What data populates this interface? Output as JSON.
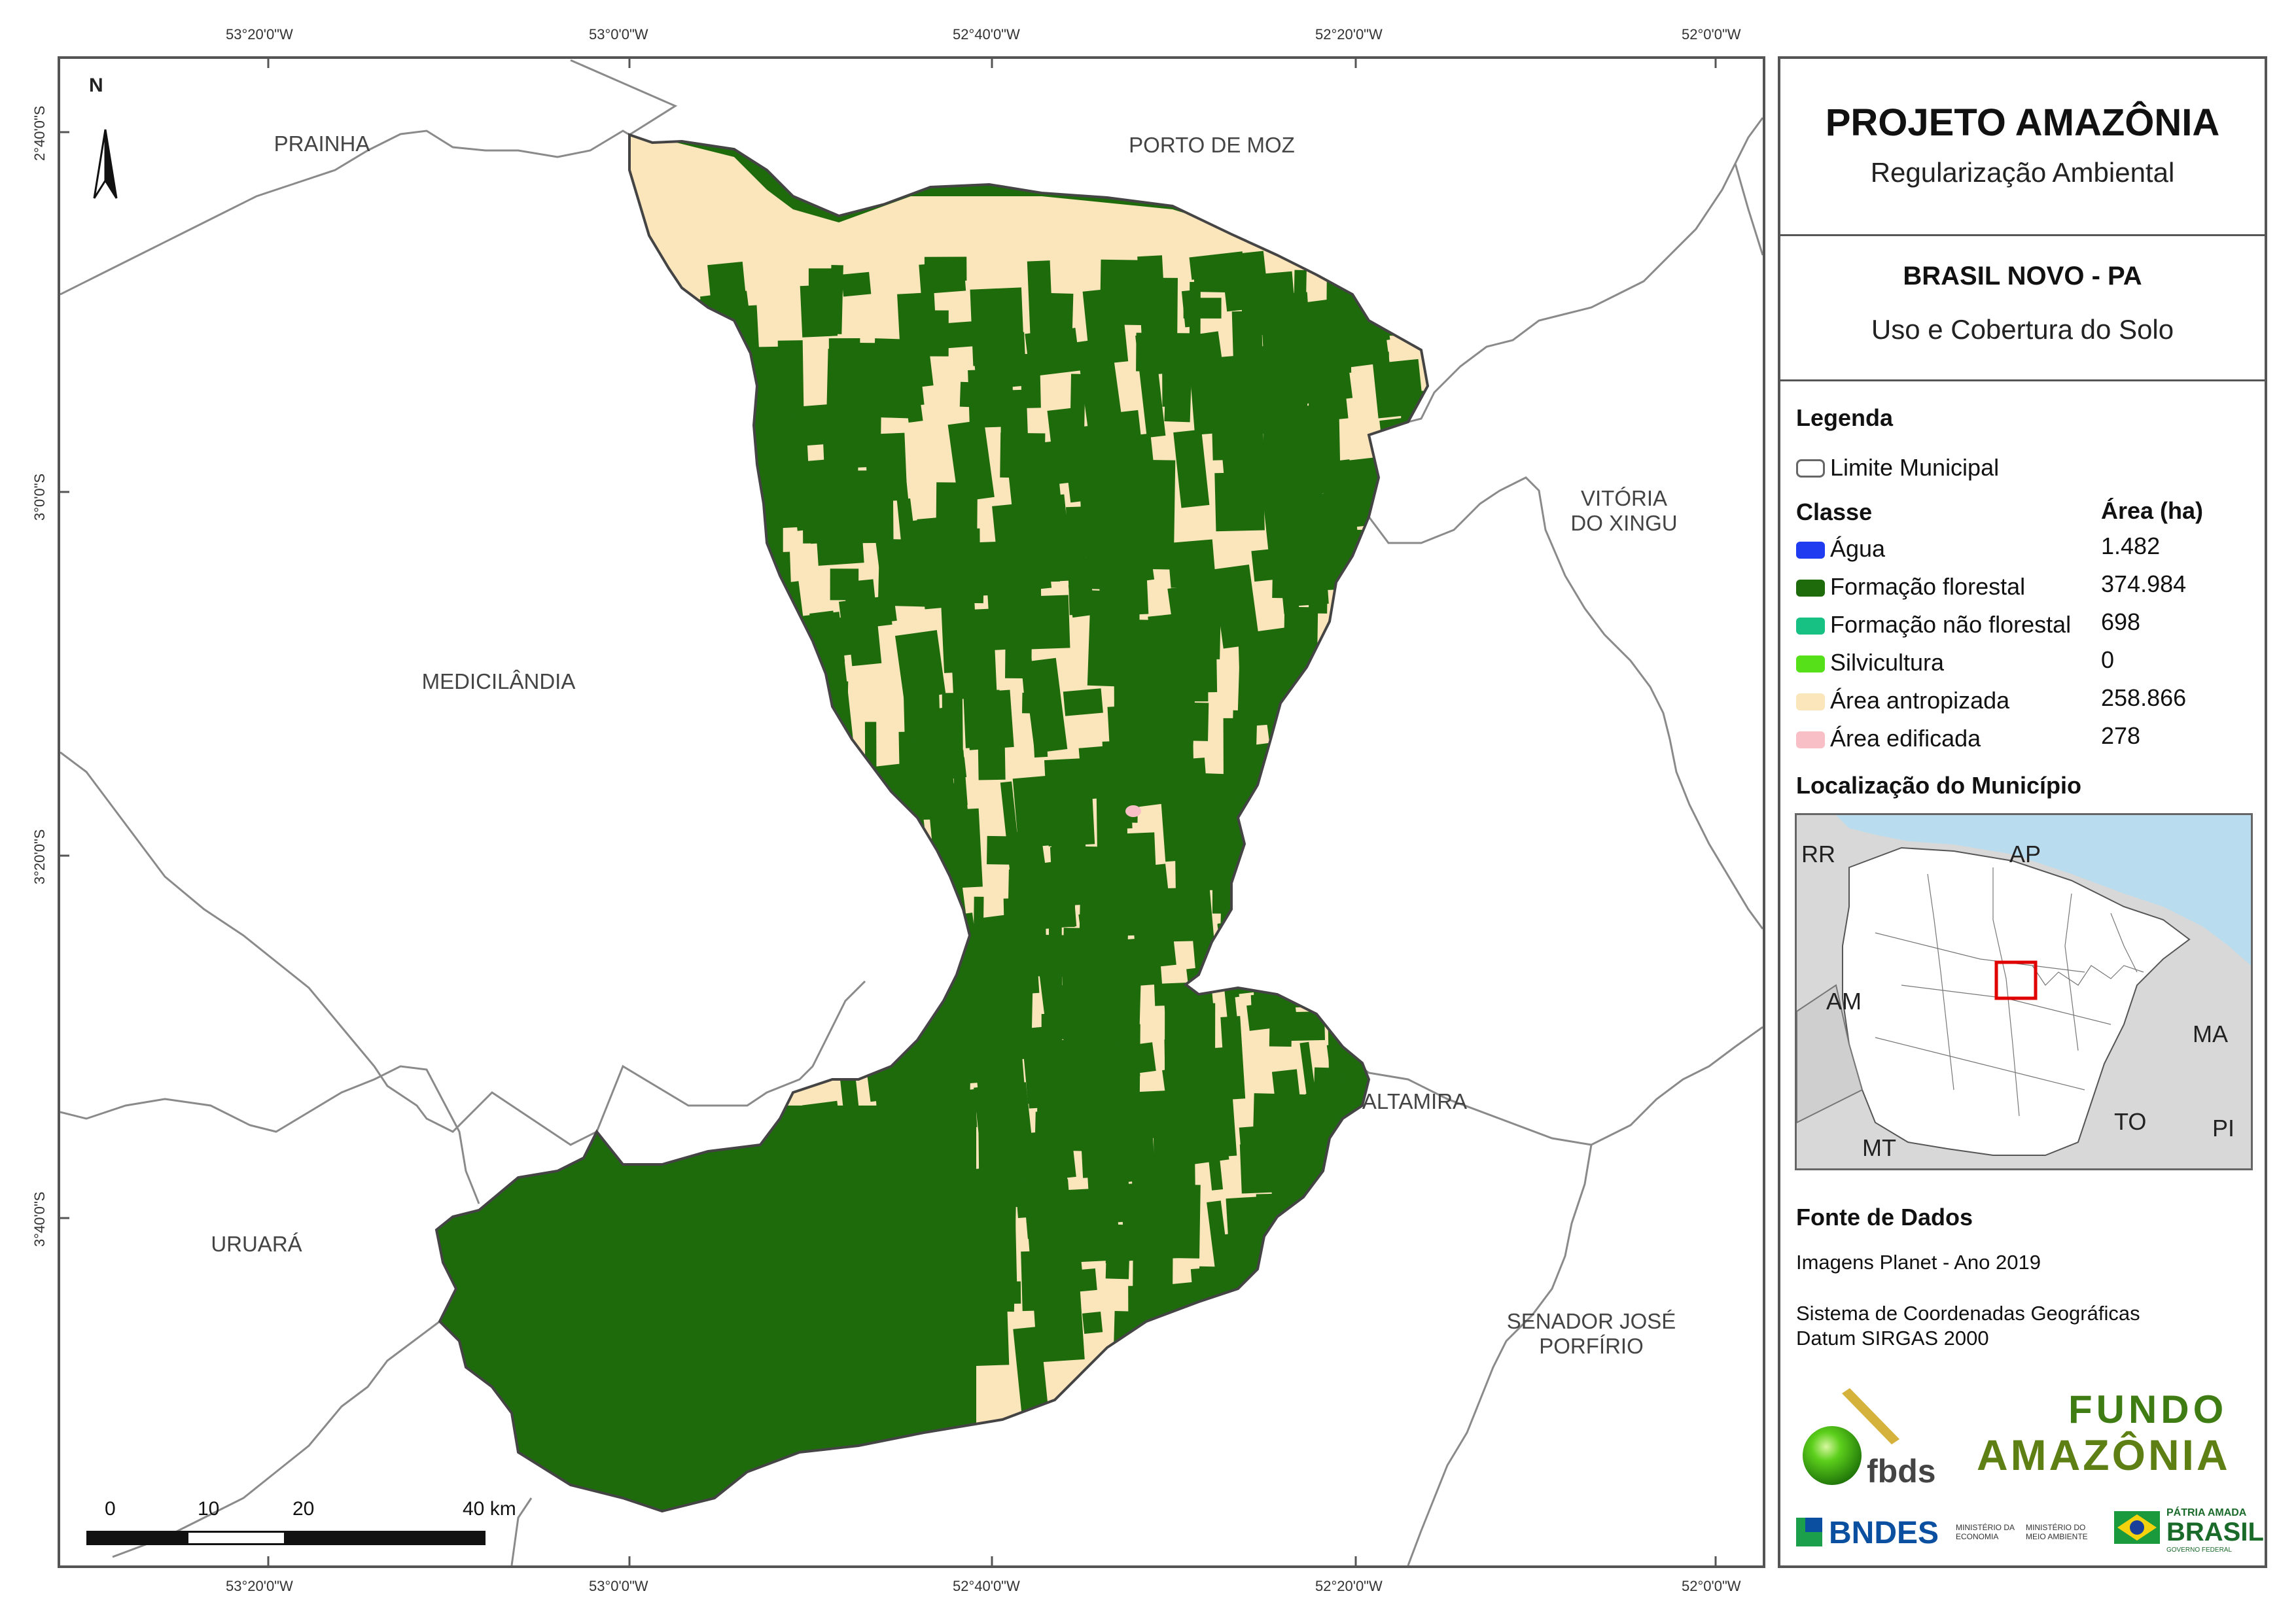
{
  "header": {
    "project": "PROJETO AMAZÔNIA",
    "subtitle": "Regularização Ambiental",
    "municipality": "BRASIL NOVO - PA",
    "theme": "Uso e Cobertura do Solo"
  },
  "coords": {
    "top": [
      "53°20'0\"W",
      "53°0'0\"W",
      "52°40'0\"W",
      "52°20'0\"W",
      "52°0'0\"W"
    ],
    "bottom": [
      "53°20'0\"W",
      "53°0'0\"W",
      "52°40'0\"W",
      "52°20'0\"W",
      "52°0'0\"W"
    ],
    "left": [
      "2°40'0\"S",
      "3°0'0\"S",
      "3°20'0\"S",
      "3°40'0\"S"
    ]
  },
  "municipalities": {
    "prainha": "PRAINHA",
    "porto_de_moz": "PORTO DE MOZ",
    "vitoria_line1": "VITÓRIA",
    "vitoria_line2": "DO XINGU",
    "medicilandia": "MEDICILÂNDIA",
    "altamira": "ALTAMIRA",
    "uruara": "URUARÁ",
    "senador_line1": "SENADOR JOSÉ",
    "senador_line2": "PORFÍRIO"
  },
  "north_arrow": "N",
  "legend": {
    "title": "Legenda",
    "boundary_label": "Limite Municipal",
    "class_header": "Classe",
    "area_header": "Área (ha)",
    "classes": [
      {
        "label": "Água",
        "value": "1.482",
        "color": "#1f3cf0"
      },
      {
        "label": "Formação florestal",
        "value": "374.984",
        "color": "#1e6b0c"
      },
      {
        "label": "Formação não florestal",
        "value": "698",
        "color": "#17c083"
      },
      {
        "label": "Silvicultura",
        "value": "0",
        "color": "#55e01a"
      },
      {
        "label": "Área antropizada",
        "value": "258.866",
        "color": "#fbe5bb"
      },
      {
        "label": "Área edificada",
        "value": "278",
        "color": "#f8c0c6"
      }
    ]
  },
  "locator": {
    "title": "Localização do Município",
    "states": [
      "RR",
      "AP",
      "AM",
      "MA",
      "TO",
      "MT",
      "PI"
    ]
  },
  "sources": {
    "title": "Fonte de Dados",
    "imagery": "Imagens Planet - Ano 2019",
    "crs_line1": "Sistema de Coordenadas Geográficas",
    "crs_line2": "Datum SIRGAS 2000"
  },
  "logos": {
    "fbds": "fbds",
    "fundo_line1": "FUNDO",
    "fundo_line2": "AMAZÔNIA",
    "bndes": "BNDES",
    "min_economia_line1": "MINISTÉRIO DA",
    "min_economia_line2": "ECONOMIA",
    "min_ambiente_line1": "MINISTÉRIO DO",
    "min_ambiente_line2": "MEIO AMBIENTE",
    "patria_line1": "PÁTRIA AMADA",
    "patria_line2": "BRASIL",
    "governo": "GOVERNO FEDERAL"
  },
  "scale_bar": {
    "labels": [
      "0",
      "10",
      "20",
      "40 km"
    ],
    "values_km": [
      0,
      10,
      20,
      40
    ]
  },
  "colors": {
    "forest": "#1e6b0c",
    "anthropic": "#fbe5bb",
    "built": "#f8c0c6",
    "border": "#555555",
    "ocean": "#b9dcef",
    "locator_land": "#d8d8d8",
    "highlight": "#e00000"
  }
}
